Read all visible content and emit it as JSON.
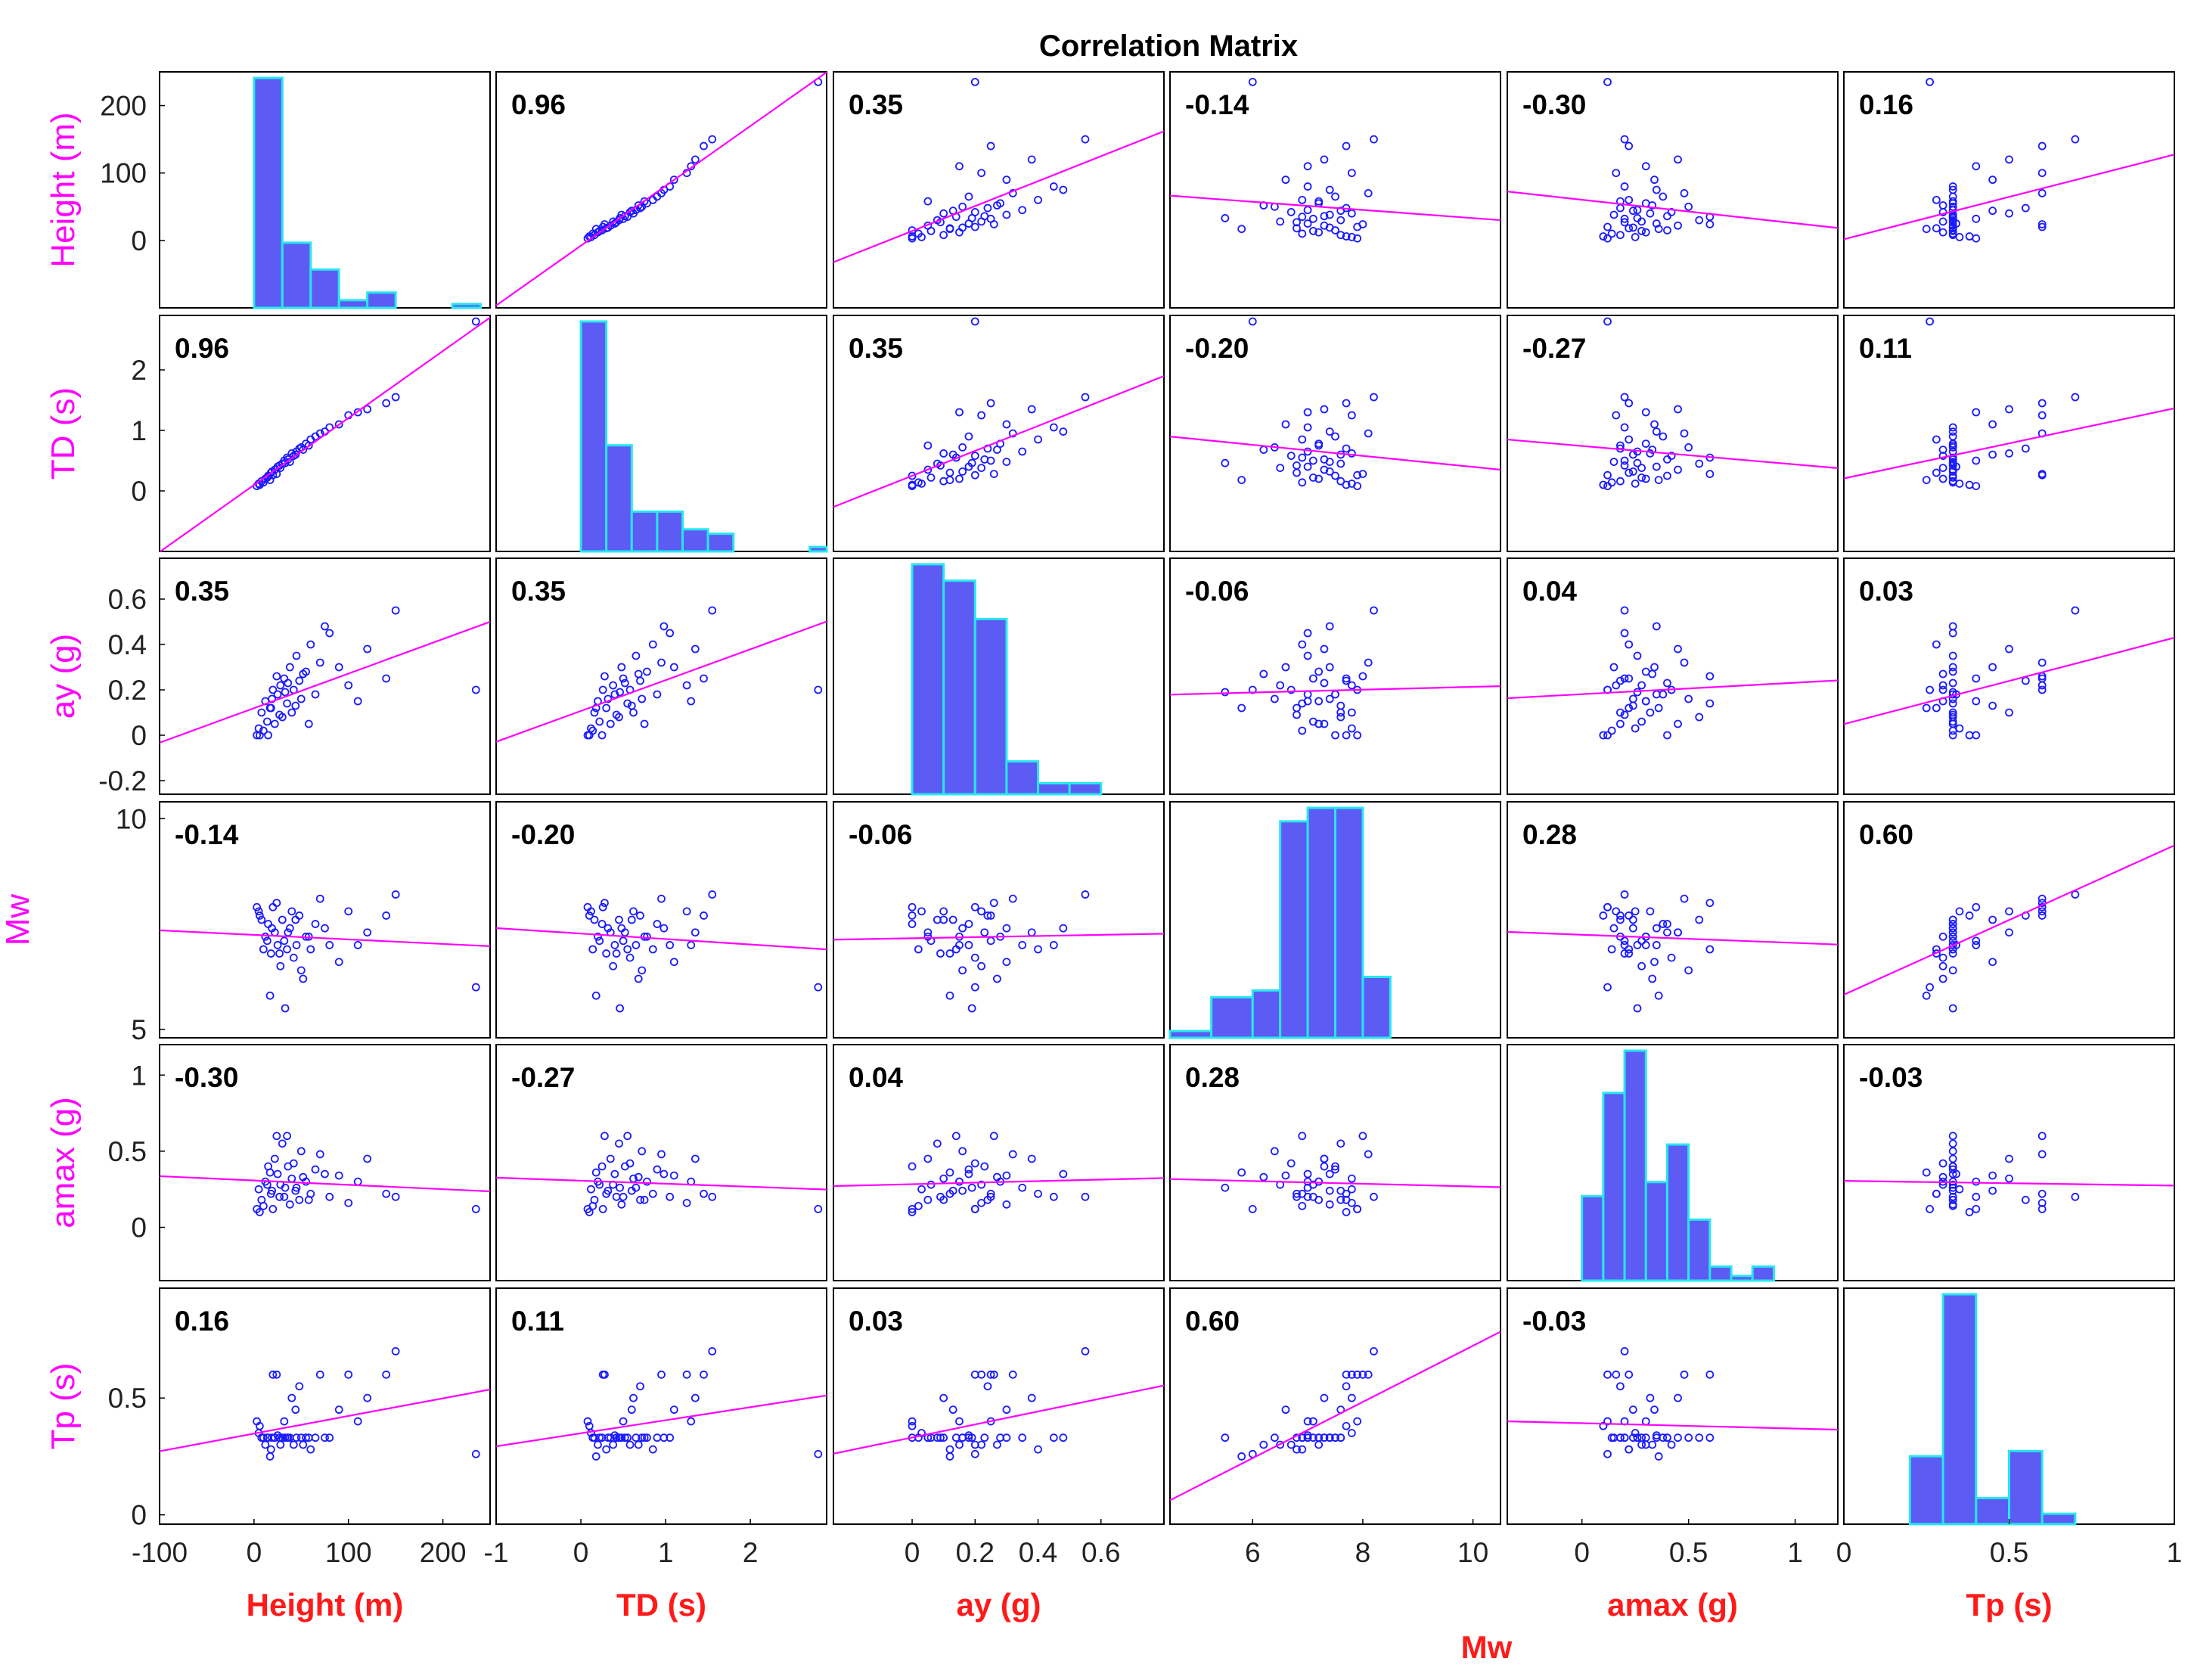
{
  "chart_data": {
    "type": "scatter-matrix",
    "title": "Correlation Matrix",
    "variables": [
      {
        "label": "Height (m)",
        "range": [
          -100,
          250
        ],
        "ylim": [
          -100,
          250
        ],
        "xticks": [
          "-100",
          "0",
          "100",
          "200"
        ],
        "xtick_values": [
          -100,
          0,
          100,
          200
        ],
        "yticks": [
          "0",
          "100",
          "200"
        ],
        "ytick_values": [
          0,
          100,
          200
        ]
      },
      {
        "label": "TD (s)",
        "range": [
          -1,
          2.9
        ],
        "ylim": [
          -1,
          2.9
        ],
        "xticks": [
          "-1",
          "0",
          "1",
          "2"
        ],
        "xtick_values": [
          -1,
          0,
          1,
          2
        ],
        "yticks": [
          "0",
          "1",
          "2"
        ],
        "ytick_values": [
          0,
          1,
          2
        ]
      },
      {
        "label": "ay (g)",
        "range": [
          -0.25,
          0.8
        ],
        "ylim": [
          -0.26,
          0.78
        ],
        "xticks": [
          "0",
          "0.2",
          "0.4",
          "0.6"
        ],
        "xtick_values": [
          0,
          0.2,
          0.4,
          0.6
        ],
        "yticks": [
          "-0.2",
          "0",
          "0.2",
          "0.4",
          "0.6"
        ],
        "ytick_values": [
          -0.2,
          0,
          0.2,
          0.4,
          0.6
        ]
      },
      {
        "label": "Mw",
        "range": [
          4.5,
          10.5
        ],
        "ylim": [
          4.8,
          10.4
        ],
        "xticks": [
          "6",
          "8",
          "10"
        ],
        "xtick_values": [
          6,
          8,
          10
        ],
        "yticks": [
          "5",
          "10"
        ],
        "ytick_values": [
          5,
          10
        ]
      },
      {
        "label": "amax (g)",
        "range": [
          -0.35,
          1.2
        ],
        "ylim": [
          -0.35,
          1.2
        ],
        "xticks": [
          "0",
          "0.5",
          "1"
        ],
        "xtick_values": [
          0,
          0.5,
          1
        ],
        "yticks": [
          "0",
          "0.5",
          "1"
        ],
        "ytick_values": [
          0,
          0.5,
          1
        ]
      },
      {
        "label": "Tp (s)",
        "range": [
          0,
          1
        ],
        "ylim": [
          -0.04,
          0.97
        ],
        "xticks": [
          "0",
          "0.5",
          "1"
        ],
        "xtick_values": [
          0,
          0.5,
          1
        ],
        "yticks": [
          "0",
          "0.5"
        ],
        "ytick_values": [
          0,
          0.5
        ]
      }
    ],
    "correlations": [
      [
        "",
        "0.96",
        "0.35",
        "-0.14",
        "-0.30",
        "0.16"
      ],
      [
        "0.96",
        "",
        "0.35",
        "-0.20",
        "-0.27",
        "0.11"
      ],
      [
        "0.35",
        "0.35",
        "",
        "-0.06",
        "0.04",
        "0.03"
      ],
      [
        "-0.14",
        "-0.20",
        "-0.06",
        "",
        "0.28",
        "0.60"
      ],
      [
        "-0.30",
        "-0.27",
        "0.04",
        "0.28",
        "",
        "-0.03"
      ],
      [
        "0.16",
        "0.11",
        "0.03",
        "0.60",
        "-0.03",
        ""
      ]
    ],
    "histograms": [
      {
        "edges": [
          0,
          30,
          60,
          90,
          120,
          150,
          180,
          210,
          240
        ],
        "counts": [
          60,
          17,
          10,
          2,
          4,
          0,
          0,
          1
        ]
      },
      {
        "edges": [
          0,
          0.3,
          0.6,
          0.9,
          1.2,
          1.5,
          1.8,
          2.1,
          2.4,
          2.7,
          2.9
        ],
        "counts": [
          52,
          24,
          9,
          9,
          5,
          4,
          0,
          0,
          0,
          1
        ]
      },
      {
        "edges": [
          0,
          0.1,
          0.2,
          0.3,
          0.4,
          0.5,
          0.6
        ],
        "counts": [
          42,
          39,
          32,
          6,
          2,
          2
        ]
      },
      {
        "edges": [
          4.5,
          5.25,
          6.0,
          6.5,
          7.0,
          7.5,
          8.0,
          8.5
        ],
        "counts": [
          1,
          6,
          7,
          32,
          34,
          34,
          9
        ]
      },
      {
        "edges": [
          0,
          0.1,
          0.2,
          0.3,
          0.4,
          0.5,
          0.6,
          0.7,
          0.8,
          0.9
        ],
        "counts": [
          18,
          40,
          49,
          21,
          29,
          13,
          3,
          1,
          3
        ]
      },
      {
        "edges": [
          0.2,
          0.3,
          0.4,
          0.5,
          0.6,
          0.7
        ],
        "counts": [
          26,
          88,
          10,
          28,
          4
        ]
      }
    ],
    "samples": [
      [
        5,
        0.12,
        0.03,
        7.8,
        0.25,
        0.35
      ],
      [
        8,
        0.16,
        0.1,
        7.6,
        0.18,
        0.33
      ],
      [
        12,
        0.2,
        0.15,
        7.2,
        0.3,
        0.3
      ],
      [
        15,
        0.25,
        0.0,
        7.5,
        0.4,
        0.33
      ],
      [
        18,
        0.3,
        0.12,
        6.8,
        0.22,
        0.28
      ],
      [
        20,
        0.26,
        0.2,
        7.9,
        0.12,
        0.6
      ],
      [
        22,
        0.35,
        0.05,
        7.3,
        0.45,
        0.33
      ],
      [
        25,
        0.4,
        0.18,
        7.0,
        0.35,
        0.34
      ],
      [
        28,
        0.38,
        0.22,
        6.5,
        0.28,
        0.3
      ],
      [
        30,
        0.45,
        0.08,
        7.6,
        0.55,
        0.33
      ],
      [
        32,
        0.5,
        0.25,
        7.1,
        0.2,
        0.4
      ],
      [
        35,
        0.55,
        0.14,
        6.9,
        0.6,
        0.33
      ],
      [
        38,
        0.48,
        0.3,
        7.4,
        0.15,
        0.33
      ],
      [
        40,
        0.62,
        0.1,
        7.8,
        0.32,
        0.5
      ],
      [
        42,
        0.58,
        0.2,
        6.7,
        0.42,
        0.3
      ],
      [
        45,
        0.65,
        0.35,
        7.0,
        0.26,
        0.33
      ],
      [
        48,
        0.7,
        0.24,
        7.7,
        0.18,
        0.55
      ],
      [
        50,
        0.72,
        0.16,
        6.4,
        0.5,
        0.33
      ],
      [
        55,
        0.78,
        0.28,
        7.2,
        0.3,
        0.33
      ],
      [
        60,
        0.85,
        0.4,
        6.9,
        0.22,
        0.28
      ],
      [
        65,
        0.9,
        0.18,
        7.5,
        0.38,
        0.33
      ],
      [
        70,
        0.95,
        0.32,
        8.1,
        0.48,
        0.6
      ],
      [
        80,
        1.05,
        0.45,
        7.0,
        0.2,
        0.33
      ],
      [
        90,
        1.1,
        0.3,
        6.6,
        0.34,
        0.45
      ],
      [
        100,
        1.25,
        0.22,
        7.8,
        0.16,
        0.6
      ],
      [
        120,
        1.35,
        0.38,
        7.3,
        0.45,
        0.5
      ],
      [
        150,
        1.55,
        0.55,
        8.2,
        0.2,
        0.7
      ],
      [
        235,
        2.8,
        0.2,
        6.0,
        0.12,
        0.26
      ],
      [
        3,
        0.08,
        0.0,
        7.9,
        0.12,
        0.4
      ],
      [
        6,
        0.1,
        0.0,
        7.7,
        0.1,
        0.38
      ],
      [
        10,
        0.14,
        0.02,
        6.9,
        0.14,
        0.33
      ],
      [
        14,
        0.22,
        0.06,
        7.1,
        0.28,
        0.33
      ],
      [
        17,
        0.18,
        0.12,
        5.8,
        0.36,
        0.25
      ],
      [
        19,
        0.32,
        0.16,
        7.4,
        0.24,
        0.33
      ],
      [
        24,
        0.28,
        0.26,
        8.0,
        0.6,
        0.6
      ],
      [
        27,
        0.42,
        0.09,
        6.8,
        0.2,
        0.33
      ],
      [
        33,
        0.46,
        0.19,
        5.5,
        0.26,
        0.33
      ],
      [
        36,
        0.52,
        0.23,
        7.3,
        0.4,
        0.33
      ],
      [
        44,
        0.6,
        0.13,
        7.6,
        0.24,
        0.45
      ],
      [
        52,
        0.68,
        0.27,
        6.2,
        0.33,
        0.3
      ],
      [
        58,
        0.75,
        0.05,
        7.2,
        0.18,
        0.33
      ],
      [
        75,
        0.98,
        0.48,
        7.4,
        0.35,
        0.33
      ],
      [
        110,
        1.3,
        0.15,
        7.0,
        0.3,
        0.4
      ],
      [
        140,
        1.45,
        0.25,
        7.7,
        0.22,
        0.6
      ]
    ],
    "fit_lines": true,
    "grid": false
  }
}
